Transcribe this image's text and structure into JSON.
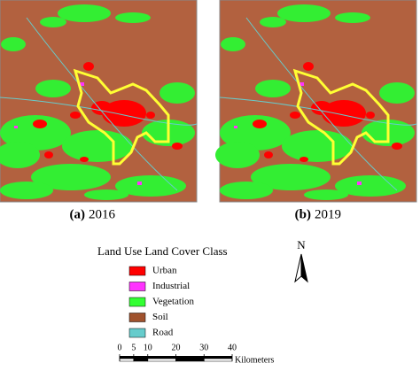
{
  "panels": [
    {
      "letter": "(a)",
      "year": "2016"
    },
    {
      "letter": "(b)",
      "year": "2019"
    }
  ],
  "legend": {
    "title": "Land Use Land Cover Class",
    "items": [
      {
        "label": "Urban",
        "color": "#ff0000"
      },
      {
        "label": "Industrial",
        "color": "#ff33ff"
      },
      {
        "label": "Vegetation",
        "color": "#33ff33"
      },
      {
        "label": "Soil",
        "color": "#a0522d"
      },
      {
        "label": "Road",
        "color": "#66cccc"
      }
    ]
  },
  "north": "N",
  "scale_bar": {
    "ticks": [
      0,
      5,
      10,
      20,
      30,
      40
    ],
    "unit": "Kilometers"
  }
}
